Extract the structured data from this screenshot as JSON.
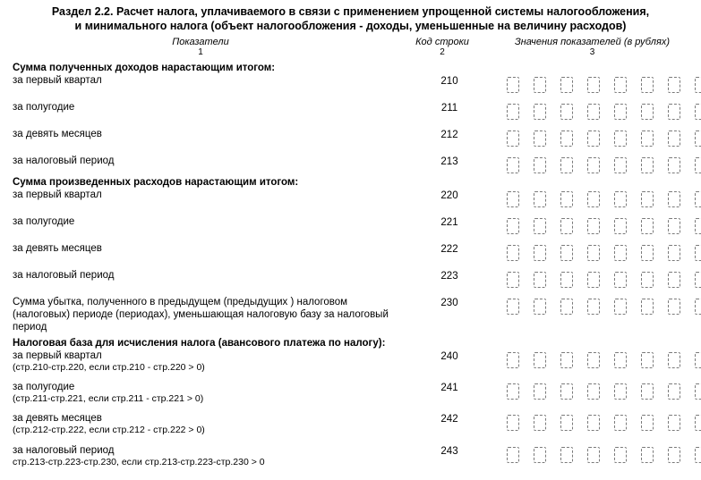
{
  "title_line1": "Раздел 2.2. Расчет налога, уплачиваемого в связи с применением упрощенной системы налогообложения,",
  "title_line2": "и минимального налога (объект налогообложения - доходы, уменьшенные на величину расходов)",
  "columns": {
    "col1_label": "Показатели",
    "col1_index": "1",
    "col2_label": "Код строки",
    "col2_index": "2",
    "col3_label": "Значения показателей (в рублях)",
    "col3_index": "3"
  },
  "value_cells_per_row": 8,
  "styling": {
    "background_color": "#ffffff",
    "text_color": "#000000",
    "cell_border_color": "#7a7a7a",
    "title_fontsize_pt": 12.5,
    "body_fontsize_pt": 11.5,
    "header_fontsize_pt": 11
  },
  "sections": {
    "income_head": "Сумма полученных доходов нарастающим итогом:",
    "expense_head": "Сумма произведенных расходов нарастающим итогом:",
    "base_head": "Налоговая база для исчисления налога (авансового платежа по налогу):"
  },
  "rows": {
    "r210": {
      "label": "за первый квартал",
      "code": "210"
    },
    "r211": {
      "label": "за полугодие",
      "code": "211"
    },
    "r212": {
      "label": "за девять месяцев",
      "code": "212"
    },
    "r213": {
      "label": "за налоговый период",
      "code": "213"
    },
    "r220": {
      "label": "за первый квартал",
      "code": "220"
    },
    "r221": {
      "label": "за полугодие",
      "code": "221"
    },
    "r222": {
      "label": "за девять месяцев",
      "code": "222"
    },
    "r223": {
      "label": "за налоговый период",
      "code": "223"
    },
    "r230": {
      "label": "Сумма убытка, полученного в предыдущем (предыдущих ) налоговом (налоговых) периоде (периодах), уменьшающая налоговую базу за налоговый период",
      "code": "230"
    },
    "r240": {
      "label": "за первый квартал",
      "note": "(стр.210-стр.220, если стр.210 - стр.220 > 0)",
      "code": "240"
    },
    "r241": {
      "label": "за полугодие",
      "note": "(стр.211-стр.221, если стр.211 - стр.221 > 0)",
      "code": "241"
    },
    "r242": {
      "label": "за девять месяцев",
      "note": "(стр.212-стр.222, если стр.212 - стр.222 > 0)",
      "code": "242"
    },
    "r243": {
      "label": "за налоговый период",
      "note": "стр.213-стр.223-стр.230, если стр.213-стр.223-стр.230 > 0",
      "code": "243"
    }
  }
}
